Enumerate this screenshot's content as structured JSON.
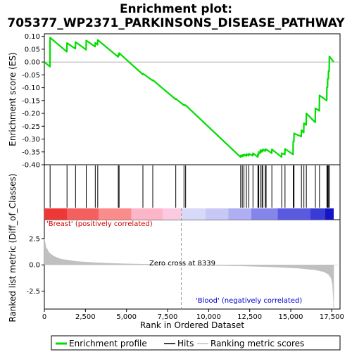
{
  "chart_data": {
    "type": "line",
    "title_lines": [
      "Enrichment plot:",
      "705377_WP2371_PARKINSONS_DISEASE_PATHWAY"
    ],
    "total_ranks": 17615,
    "x_ticks": [
      {
        "v": 0,
        "label": "0"
      },
      {
        "v": 2500,
        "label": "2,500"
      },
      {
        "v": 5000,
        "label": "5,000"
      },
      {
        "v": 7500,
        "label": "7,500"
      },
      {
        "v": 10000,
        "label": "10,000"
      },
      {
        "v": 12500,
        "label": "12,500"
      },
      {
        "v": 15000,
        "label": "15,000"
      },
      {
        "v": 17500,
        "label": "17,500"
      }
    ],
    "xlim": [
      0,
      18000
    ],
    "xlabel": "Rank in Ordered Dataset",
    "es_panel": {
      "ylabel": "Enrichment score (ES)",
      "ylim": [
        -0.4,
        0.11
      ],
      "y_ticks": [
        {
          "v": 0.1,
          "label": "0.10"
        },
        {
          "v": 0.05,
          "label": "0.05"
        },
        {
          "v": 0.0,
          "label": "0.00"
        },
        {
          "v": -0.05,
          "label": "-0.05"
        },
        {
          "v": -0.1,
          "label": "-0.10"
        },
        {
          "v": -0.15,
          "label": "-0.15"
        },
        {
          "v": -0.2,
          "label": "-0.20"
        },
        {
          "v": -0.25,
          "label": "-0.25"
        },
        {
          "v": -0.3,
          "label": "-0.30"
        },
        {
          "v": -0.35,
          "label": "-0.35"
        },
        {
          "v": -0.4,
          "label": "-0.40"
        }
      ],
      "color": "#00dd00",
      "hits": [
        350,
        1380,
        1900,
        2550,
        3100,
        3250,
        4500,
        4550,
        6000,
        6600,
        8000,
        8500,
        8600,
        11950,
        12050,
        12150,
        12300,
        12450,
        12700,
        13000,
        13050,
        13150,
        13250,
        13300,
        13450,
        13500,
        13850,
        14450,
        14650,
        15150,
        15200,
        15650,
        15800,
        15950,
        16500,
        16750,
        17200,
        17250,
        17300,
        17350
      ],
      "es_points": [
        [
          0,
          0.0
        ],
        [
          340,
          -0.018
        ],
        [
          350,
          0.095
        ],
        [
          1370,
          0.04
        ],
        [
          1380,
          0.074
        ],
        [
          1890,
          0.052
        ],
        [
          1900,
          0.078
        ],
        [
          2540,
          0.048
        ],
        [
          2550,
          0.084
        ],
        [
          3090,
          0.06
        ],
        [
          3100,
          0.075
        ],
        [
          3240,
          0.068
        ],
        [
          3250,
          0.086
        ],
        [
          4490,
          0.02
        ],
        [
          4500,
          0.028
        ],
        [
          4540,
          0.025
        ],
        [
          4550,
          0.035
        ],
        [
          5990,
          -0.048
        ],
        [
          6000,
          -0.045
        ],
        [
          6590,
          -0.072
        ],
        [
          6600,
          -0.07
        ],
        [
          7990,
          -0.145
        ],
        [
          8000,
          -0.143
        ],
        [
          8490,
          -0.168
        ],
        [
          8500,
          -0.166
        ],
        [
          8590,
          -0.17
        ],
        [
          8600,
          -0.168
        ],
        [
          11940,
          -0.37
        ],
        [
          11950,
          -0.364
        ],
        [
          12040,
          -0.368
        ],
        [
          12050,
          -0.362
        ],
        [
          12140,
          -0.366
        ],
        [
          12150,
          -0.36
        ],
        [
          12290,
          -0.366
        ],
        [
          12300,
          -0.358
        ],
        [
          12440,
          -0.365
        ],
        [
          12450,
          -0.357
        ],
        [
          12690,
          -0.365
        ],
        [
          12700,
          -0.355
        ],
        [
          12990,
          -0.37
        ],
        [
          13000,
          -0.358
        ],
        [
          13040,
          -0.362
        ],
        [
          13050,
          -0.35
        ],
        [
          13140,
          -0.355
        ],
        [
          13150,
          -0.343
        ],
        [
          13240,
          -0.35
        ],
        [
          13250,
          -0.343
        ],
        [
          13290,
          -0.348
        ],
        [
          13300,
          -0.34
        ],
        [
          13440,
          -0.347
        ],
        [
          13450,
          -0.34
        ],
        [
          13490,
          -0.343
        ],
        [
          13500,
          -0.34
        ],
        [
          13840,
          -0.355
        ],
        [
          13850,
          -0.34
        ],
        [
          14440,
          -0.37
        ],
        [
          14450,
          -0.355
        ],
        [
          14640,
          -0.36
        ],
        [
          14650,
          -0.338
        ],
        [
          15140,
          -0.36
        ],
        [
          15150,
          -0.31
        ],
        [
          15190,
          -0.31
        ],
        [
          15200,
          -0.278
        ],
        [
          15640,
          -0.29
        ],
        [
          15650,
          -0.265
        ],
        [
          15790,
          -0.275
        ],
        [
          15800,
          -0.238
        ],
        [
          15940,
          -0.245
        ],
        [
          15950,
          -0.2
        ],
        [
          16490,
          -0.235
        ],
        [
          16500,
          -0.18
        ],
        [
          16740,
          -0.19
        ],
        [
          16750,
          -0.13
        ],
        [
          17190,
          -0.15
        ],
        [
          17200,
          -0.098
        ],
        [
          17240,
          -0.098
        ],
        [
          17250,
          -0.065
        ],
        [
          17290,
          -0.065
        ],
        [
          17300,
          -0.035
        ],
        [
          17340,
          -0.035
        ],
        [
          17350,
          0.022
        ],
        [
          17615,
          0.0
        ]
      ]
    },
    "rank_panel": {
      "ylabel": "Ranked list metric (Diff_of_Classes)",
      "ylim": [
        -4.2,
        4.3
      ],
      "y_ticks": [
        {
          "v": 2.5,
          "label": "2.5"
        },
        {
          "v": 0.0,
          "label": "0.0"
        },
        {
          "v": -2.5,
          "label": "-2.5"
        }
      ],
      "metric_points": [
        [
          0,
          2.5
        ],
        [
          100,
          1.7
        ],
        [
          300,
          1.15
        ],
        [
          600,
          0.8
        ],
        [
          1000,
          0.55
        ],
        [
          2000,
          0.32
        ],
        [
          3000,
          0.22
        ],
        [
          4000,
          0.15
        ],
        [
          5000,
          0.1
        ],
        [
          6500,
          0.05
        ],
        [
          8339,
          0.0
        ],
        [
          10000,
          -0.05
        ],
        [
          12000,
          -0.1
        ],
        [
          14000,
          -0.2
        ],
        [
          15500,
          -0.32
        ],
        [
          16500,
          -0.48
        ],
        [
          17000,
          -0.65
        ],
        [
          17300,
          -0.9
        ],
        [
          17450,
          -1.25
        ],
        [
          17540,
          -1.8
        ],
        [
          17600,
          -3.4
        ],
        [
          17615,
          -4.2
        ]
      ],
      "zero_cross": 8339,
      "zero_cross_label": "Zero cross at 8339",
      "pos_label": "'Breast' (positively correlated)",
      "neg_label": "'Blood' (negatively correlated)",
      "pos_color": "#ff0000",
      "neg_color": "#0000ff",
      "fill_color": "#c0c0c0"
    },
    "gradient_bar": {
      "segments": [
        {
          "from": 0,
          "to": 1400,
          "color": "#ee3838"
        },
        {
          "from": 1400,
          "to": 3300,
          "color": "#f46060"
        },
        {
          "from": 3300,
          "to": 5300,
          "color": "#fa8c8c"
        },
        {
          "from": 5300,
          "to": 7200,
          "color": "#fdb6c8"
        },
        {
          "from": 7200,
          "to": 8339,
          "color": "#fccae0"
        },
        {
          "from": 8339,
          "to": 9800,
          "color": "#d8d8f8"
        },
        {
          "from": 9800,
          "to": 11200,
          "color": "#c8c8f6"
        },
        {
          "from": 11200,
          "to": 12600,
          "color": "#aeaef2"
        },
        {
          "from": 12600,
          "to": 14200,
          "color": "#8484ea"
        },
        {
          "from": 14200,
          "to": 16200,
          "color": "#5a5ae0"
        },
        {
          "from": 16200,
          "to": 17100,
          "color": "#3a3ad6"
        },
        {
          "from": 17100,
          "to": 17615,
          "color": "#1414c4"
        }
      ]
    },
    "legend": [
      {
        "label": "Enrichment profile",
        "color": "#00dd00",
        "kind": "line"
      },
      {
        "label": "Hits",
        "color": "#000000",
        "kind": "line"
      },
      {
        "label": "Ranking metric scores",
        "color": "#c0c0c0",
        "kind": "line"
      }
    ]
  }
}
